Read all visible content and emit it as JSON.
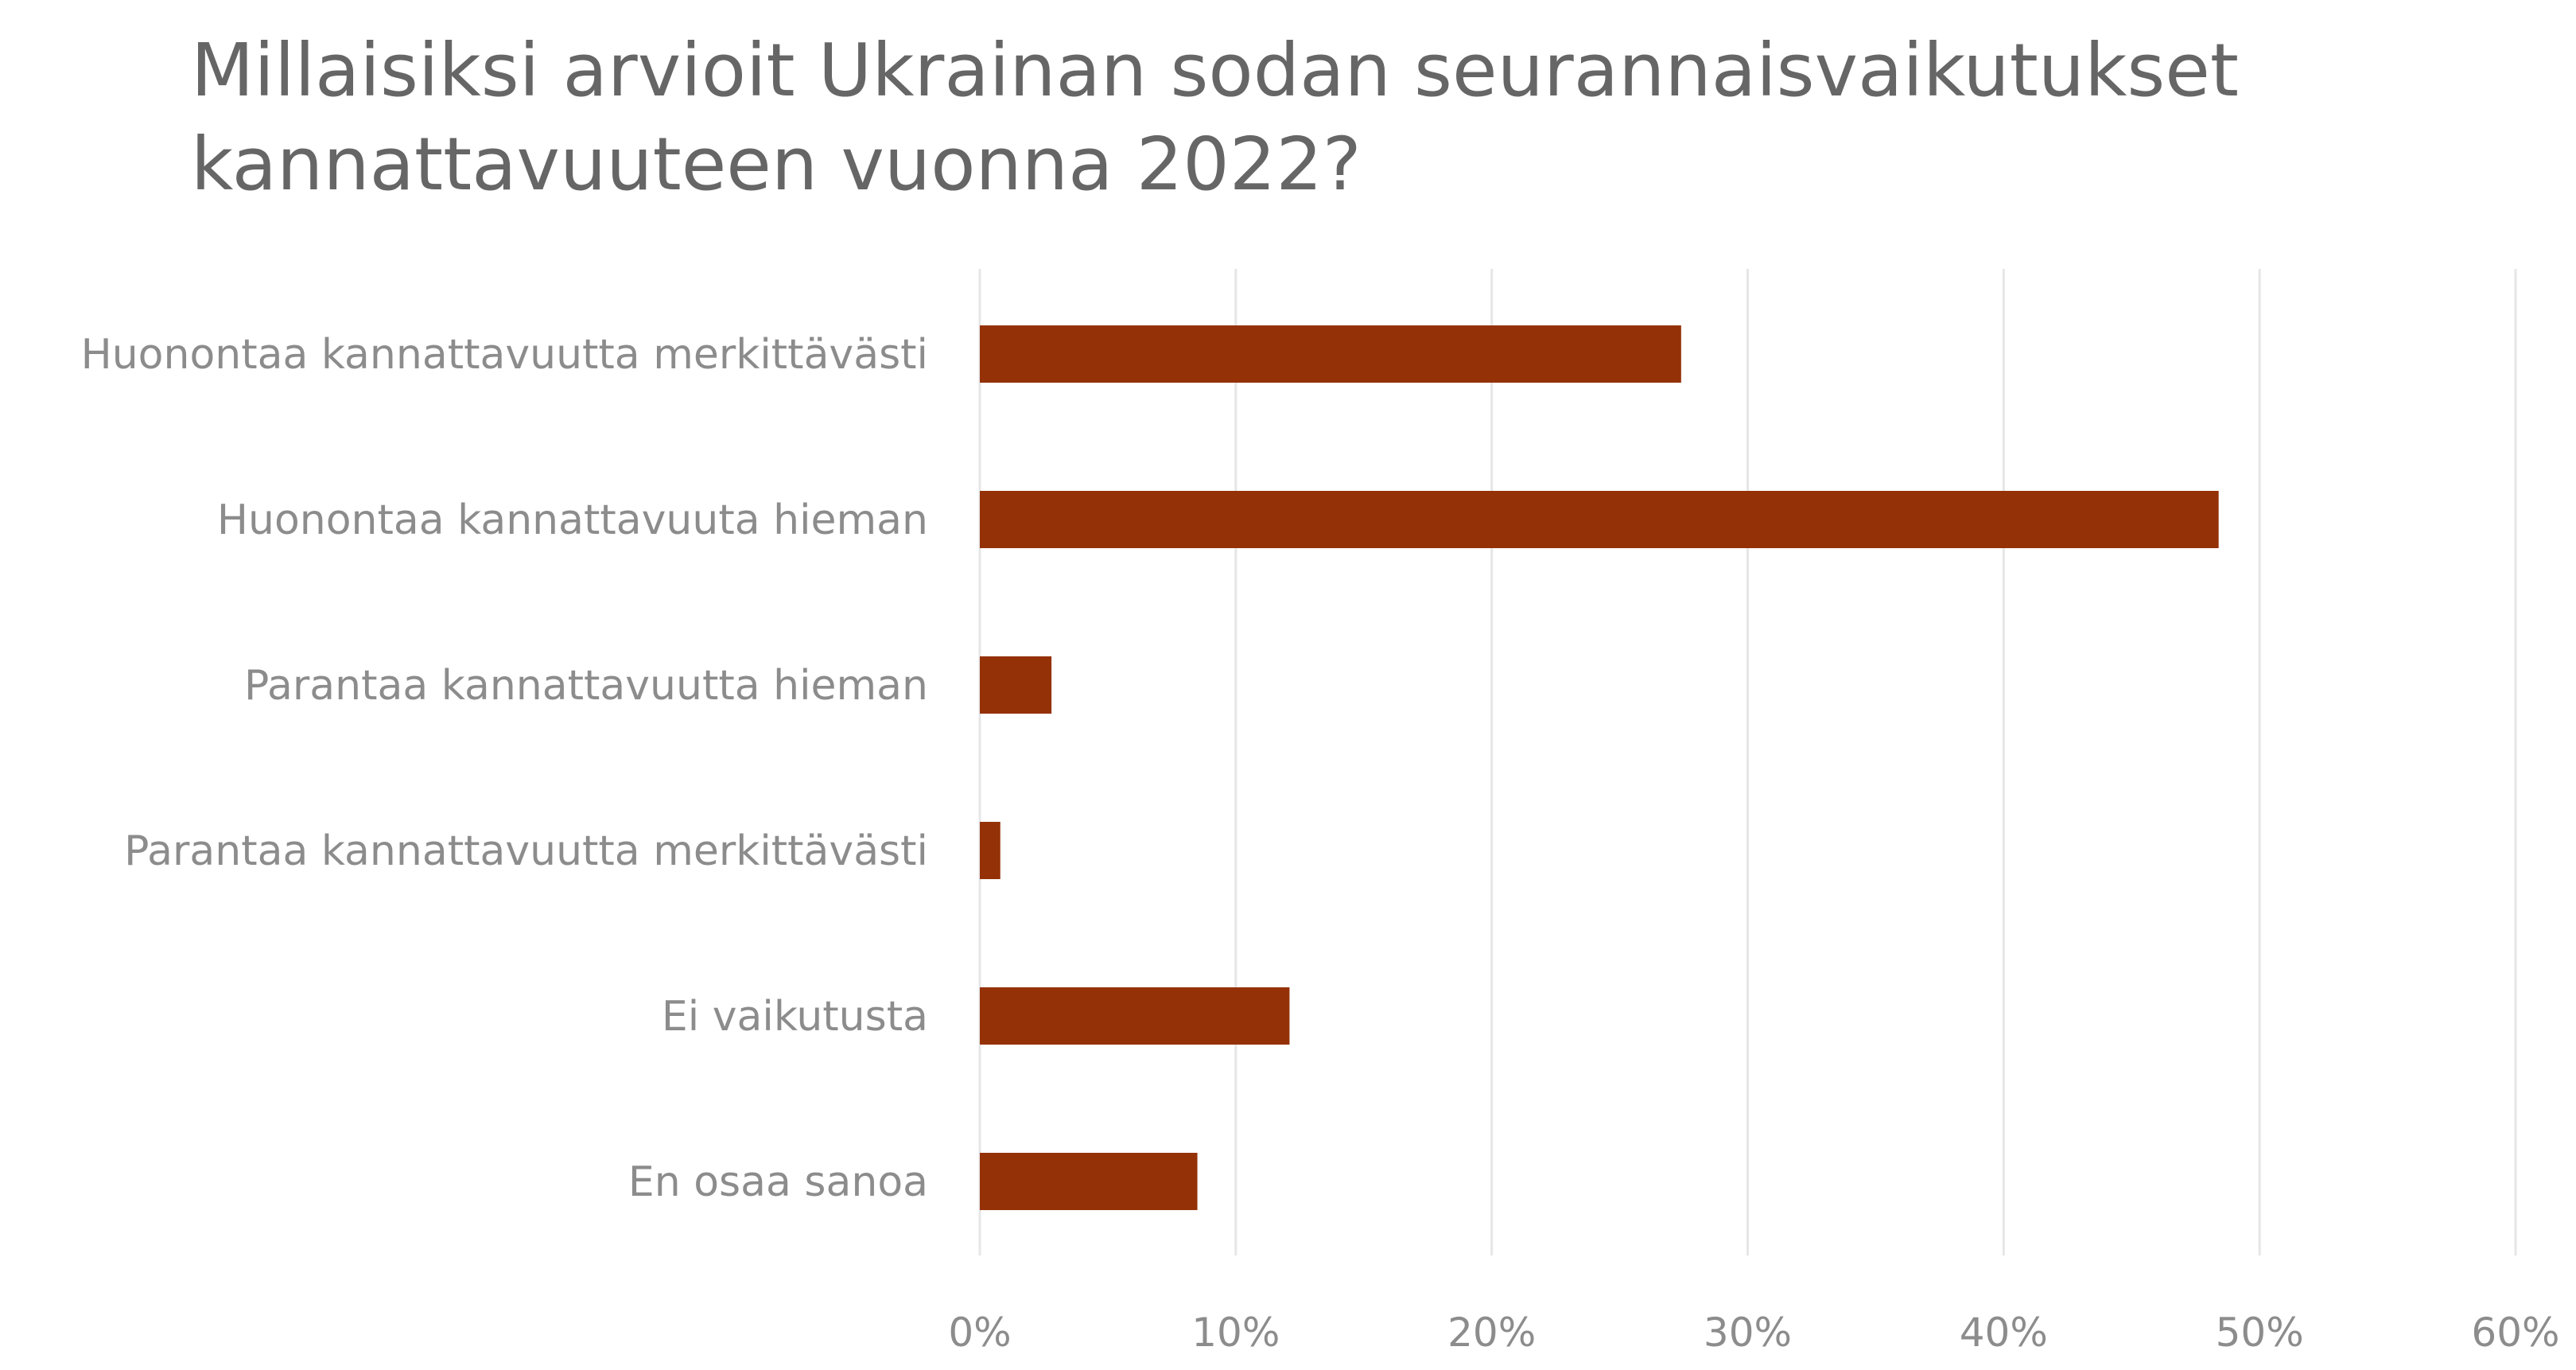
{
  "chart_data": {
    "type": "bar",
    "orientation": "horizontal",
    "title": "Millaisiksi arvioit Ukrainan sodan seurannaisvaikutukset kannattavuuteen vuonna 2022?",
    "categories": [
      "Huonontaa kannattavuutta merkittävästi",
      "Huonontaa kannattavuuta hieman",
      "Parantaa kannattavuutta hieman",
      "Parantaa kannattavuutta merkittävästi",
      "Ei vaikutusta",
      "En osaa sanoa"
    ],
    "values": [
      27.4,
      48.4,
      2.8,
      0.8,
      12.1,
      8.5
    ],
    "xlim": [
      0,
      60
    ],
    "x_ticks": [
      "0%",
      "10%",
      "20%",
      "30%",
      "40%",
      "50%",
      "60%"
    ],
    "grid": "vertical",
    "legend": "none",
    "colors": {
      "bar": "#943107",
      "grid": "#e6e6e6",
      "text": "#8c8c8c",
      "title": "#666666"
    }
  }
}
